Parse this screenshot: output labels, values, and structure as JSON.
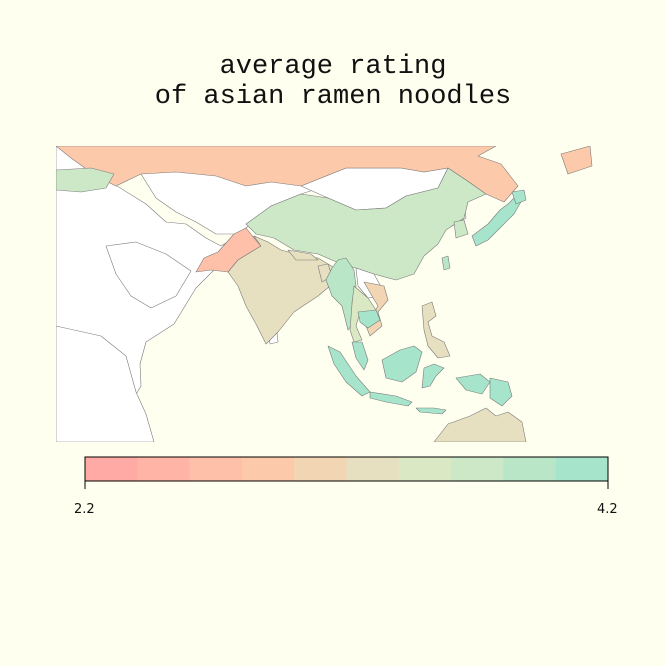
{
  "title": {
    "line1": "average rating",
    "line2": "of asian ramen noodles"
  },
  "legend": {
    "min_label": "2.2",
    "max_label": "4.2",
    "min": 2.2,
    "max": 4.2,
    "colors": [
      "#ffaaa4",
      "#ffb4a6",
      "#ffc0aa",
      "#fcc9aa",
      "#f2d6b4",
      "#e6e0c0",
      "#dbe8c4",
      "#cce8c6",
      "#b8e6c6",
      "#a6e4cc"
    ]
  },
  "map": {
    "background": "#fffff0",
    "no_data_fill": "#ffffff",
    "border_color": "#7a7a7a",
    "regions": [
      {
        "name": "russia",
        "value": 3.0
      },
      {
        "name": "kazakhstan",
        "value": 3.8
      },
      {
        "name": "china",
        "value": 3.6
      },
      {
        "name": "pakistan",
        "value": 2.7
      },
      {
        "name": "india",
        "value": 3.3
      },
      {
        "name": "nepal",
        "value": 3.4
      },
      {
        "name": "bangladesh",
        "value": 3.4
      },
      {
        "name": "myanmar",
        "value": 3.9
      },
      {
        "name": "thailand",
        "value": 3.5
      },
      {
        "name": "vietnam",
        "value": 3.1
      },
      {
        "name": "cambodia",
        "value": 4.1
      },
      {
        "name": "malaysia",
        "value": 4.0
      },
      {
        "name": "indonesia",
        "value": 4.0
      },
      {
        "name": "philippines",
        "value": 3.2
      },
      {
        "name": "taiwan",
        "value": 3.9
      },
      {
        "name": "south-korea",
        "value": 3.8
      },
      {
        "name": "japan",
        "value": 4.0
      },
      {
        "name": "papua-new-guinea",
        "value": 4.1
      },
      {
        "name": "australia",
        "value": 3.2
      }
    ]
  }
}
